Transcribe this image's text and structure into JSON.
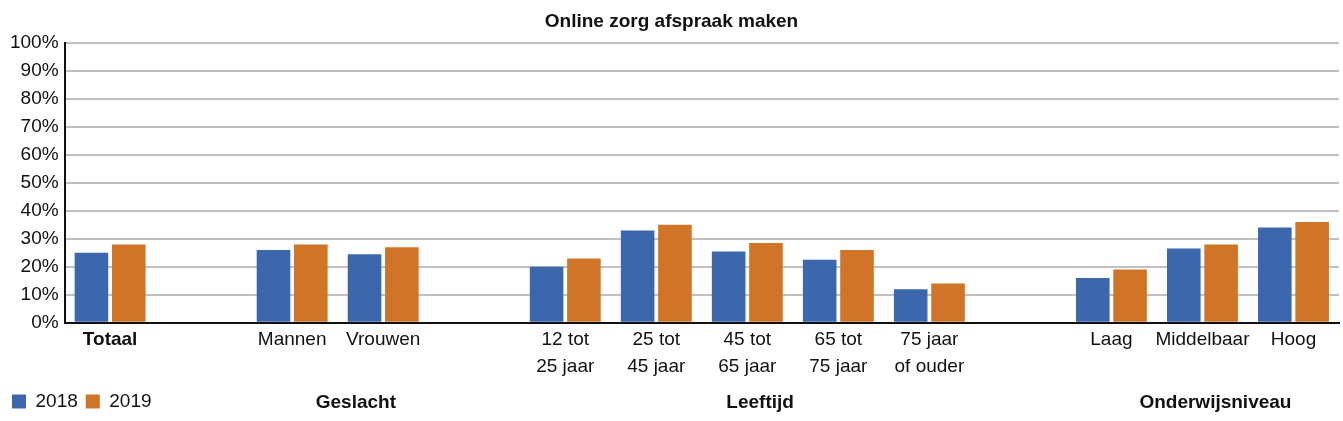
{
  "chart_data": {
    "type": "bar",
    "title": "Online zorg afspraak maken",
    "categories": [
      "Totaal",
      null,
      "Mannen",
      "Vrouwen",
      null,
      "12 tot\n25 jaar",
      "25 tot\n45 jaar",
      "45 tot\n65 jaar",
      "65 tot\n75 jaar",
      "75 jaar\nof ouder",
      null,
      "Laag",
      "Middelbaar",
      "Hoog"
    ],
    "series": [
      {
        "name": "2018",
        "color": "#3c67ac",
        "values": [
          25,
          null,
          26,
          24.5,
          null,
          20,
          33,
          25.5,
          22.5,
          12,
          null,
          16,
          26.5,
          34
        ]
      },
      {
        "name": "2019",
        "color": "#d07428",
        "values": [
          28,
          null,
          28,
          27,
          null,
          23,
          35,
          28.5,
          26,
          14,
          null,
          19,
          28,
          36
        ]
      }
    ],
    "ylim": [
      0,
      100
    ],
    "yticks": [
      {
        "value": 0,
        "label": "0%"
      },
      {
        "value": 10,
        "label": "10%"
      },
      {
        "value": 20,
        "label": "20%"
      },
      {
        "value": 30,
        "label": "30%"
      },
      {
        "value": 40,
        "label": "40%"
      },
      {
        "value": 50,
        "label": "50%"
      },
      {
        "value": 60,
        "label": "60%"
      },
      {
        "value": 70,
        "label": "70%"
      },
      {
        "value": 80,
        "label": "80%"
      },
      {
        "value": 90,
        "label": "90%"
      },
      {
        "value": 100,
        "label": "100%"
      }
    ],
    "grid": "y",
    "legend": "bottom left",
    "annotations": [
      "Geslacht",
      "Leeftijd",
      "Onderwijsniveau"
    ]
  }
}
